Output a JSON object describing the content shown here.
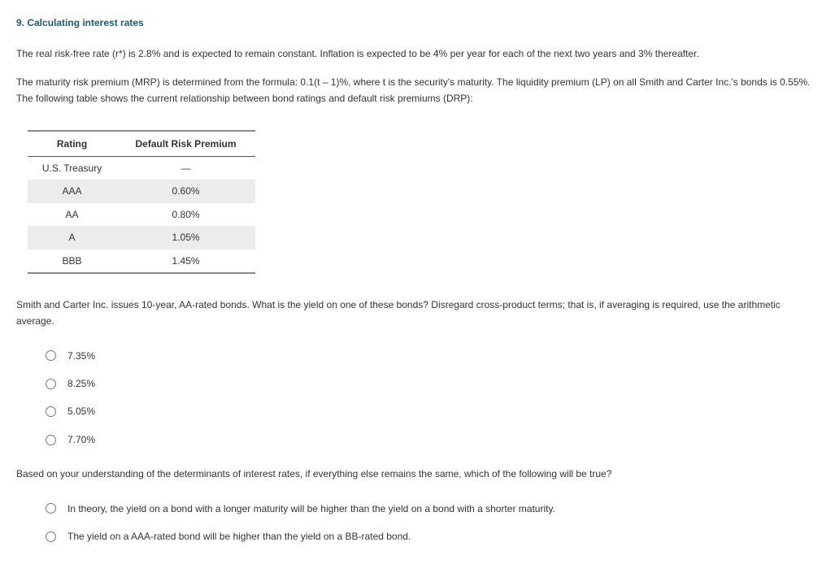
{
  "heading": "9. Calculating interest rates",
  "para1": "The real risk-free rate (r*) is 2.8% and is expected to remain constant. Inflation is expected to be 4% per year for each of the next two years and 3% thereafter.",
  "para2": "The maturity risk premium (MRP) is determined from the formula: 0.1(t – 1)%, where t is the security's maturity. The liquidity premium (LP) on all Smith and Carter Inc.'s bonds is 0.55%. The following table shows the current relationship between bond ratings and default risk premiums (DRP):",
  "table": {
    "col1": "Rating",
    "col2": "Default Risk Premium",
    "rows": [
      {
        "rating": "U.S. Treasury",
        "drp": "—"
      },
      {
        "rating": "AAA",
        "drp": "0.60%"
      },
      {
        "rating": "AA",
        "drp": "0.80%"
      },
      {
        "rating": "A",
        "drp": "1.05%"
      },
      {
        "rating": "BBB",
        "drp": "1.45%"
      }
    ]
  },
  "para3": "Smith and Carter Inc. issues 10-year, AA-rated bonds. What is the yield on one of these bonds? Disregard cross-product terms; that is, if averaging is required, use the arithmetic average.",
  "q1_options": [
    "7.35%",
    "8.25%",
    "5.05%",
    "7.70%"
  ],
  "para4": "Based on your understanding of the determinants of interest rates, if everything else remains the same, which of the following will be true?",
  "q2_options": [
    "In theory, the yield on a bond with a longer maturity will be higher than the yield on a bond with a shorter maturity.",
    "The yield on a AAA-rated bond will be higher than the yield on a BB-rated bond."
  ]
}
